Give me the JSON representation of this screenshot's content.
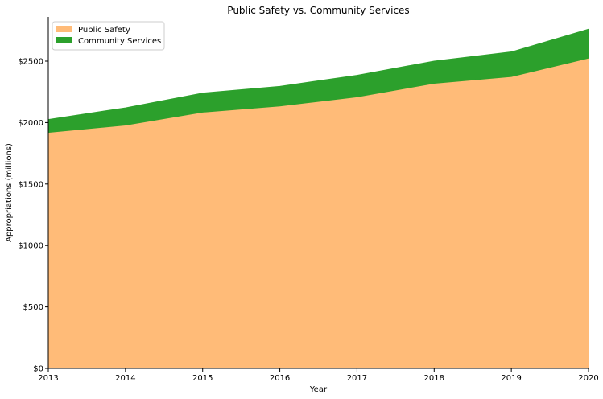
{
  "chart_data": {
    "type": "area",
    "stacked": true,
    "title": "Public Safety vs. Community Services",
    "xlabel": "Year",
    "ylabel": "Appropriations (millions)",
    "x": [
      2013,
      2014,
      2015,
      2016,
      2017,
      2018,
      2019,
      2020
    ],
    "x_tick_labels": [
      "2013",
      "2014",
      "2015",
      "2016",
      "2017",
      "2018",
      "2019",
      "2020"
    ],
    "xlim": [
      2013,
      2020
    ],
    "ylim": [
      0,
      2860
    ],
    "y_ticks": [
      0,
      500,
      1000,
      1500,
      2000,
      2500
    ],
    "y_tick_labels": [
      "$0",
      "$500",
      "$1000",
      "$1500",
      "$2000",
      "$2500"
    ],
    "grid": false,
    "legend_position": "top-left",
    "series": [
      {
        "name": "Public Safety",
        "color": "#ffbb78",
        "values": [
          1920,
          1980,
          2085,
          2135,
          2210,
          2320,
          2375,
          2525
        ]
      },
      {
        "name": "Community Services",
        "color": "#2ca02c",
        "values": [
          105,
          140,
          155,
          160,
          175,
          180,
          200,
          235
        ]
      }
    ]
  }
}
